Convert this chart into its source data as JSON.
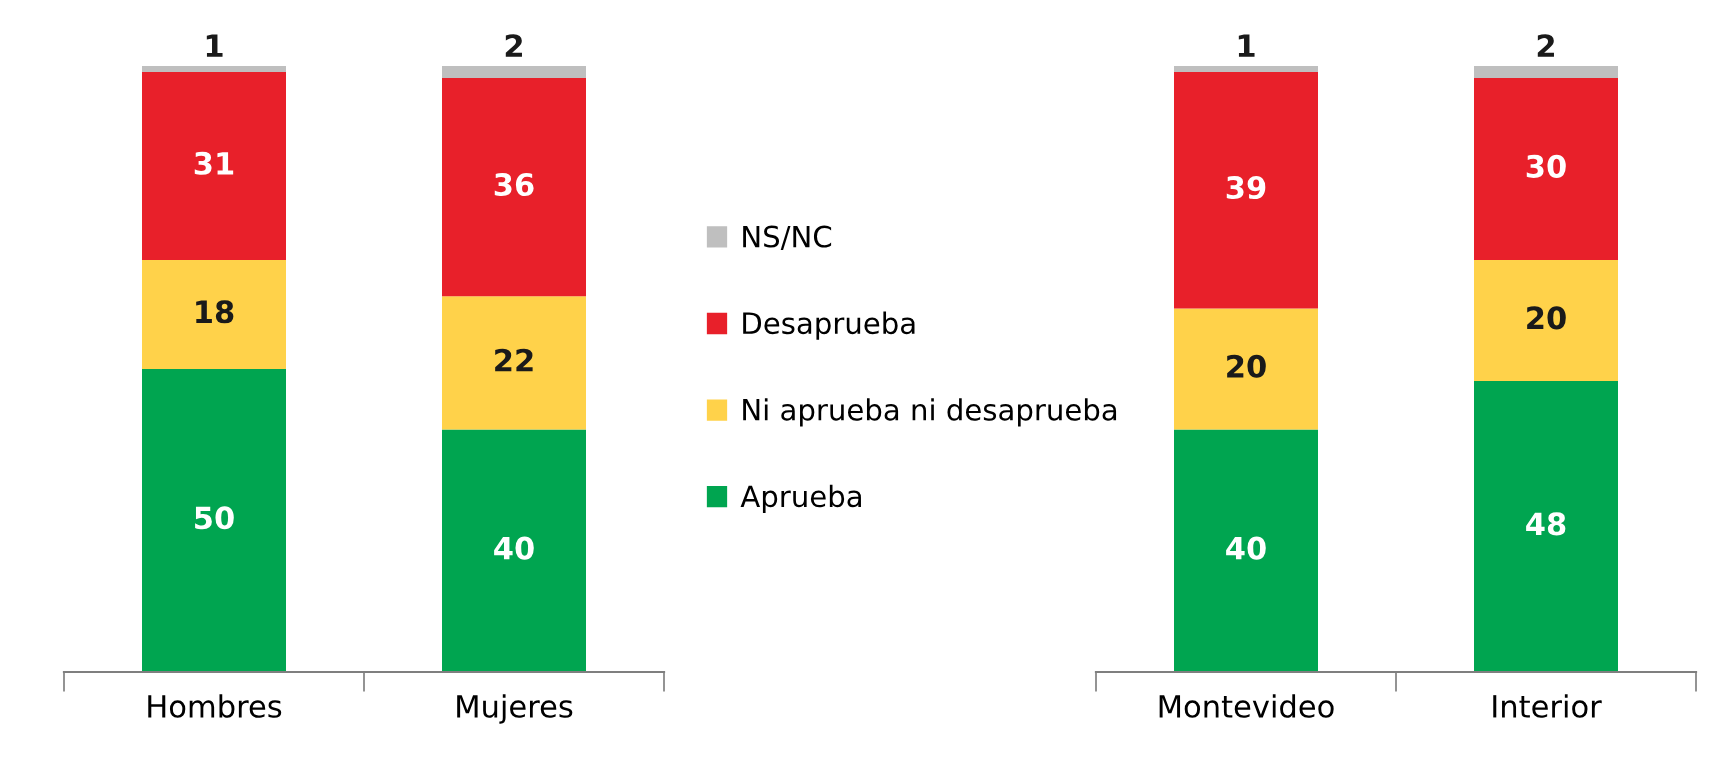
{
  "chart_data": [
    {
      "type": "bar",
      "stacked": true,
      "categories": [
        "Hombres",
        "Mujeres"
      ],
      "ylim": [
        0,
        100
      ],
      "tick_labels": "x",
      "data_labels": true,
      "legend": "right",
      "grid": false,
      "series": [
        {
          "name": "Aprueba",
          "color": "#00a550",
          "values": [
            50,
            40
          ]
        },
        {
          "name": "Ni aprueba ni desaprueba",
          "color": "#ffd24a",
          "values": [
            18,
            22
          ]
        },
        {
          "name": "Desaprueba",
          "color": "#e8202a",
          "values": [
            31,
            36
          ]
        },
        {
          "name": "NS/NC",
          "color": "#bfbfbf",
          "values": [
            1,
            2
          ]
        }
      ]
    },
    {
      "type": "bar",
      "stacked": true,
      "categories": [
        "Montevideo",
        "Interior"
      ],
      "ylim": [
        0,
        100
      ],
      "tick_labels": "x",
      "data_labels": true,
      "grid": false,
      "series": [
        {
          "color": "#00a550",
          "values": [
            40,
            48
          ]
        },
        {
          "color": "#ffd24a",
          "values": [
            20,
            20
          ]
        },
        {
          "color": "#e8202a",
          "values": [
            39,
            30
          ]
        },
        {
          "color": "#bfbfbf",
          "values": [
            1,
            2
          ]
        }
      ]
    }
  ]
}
